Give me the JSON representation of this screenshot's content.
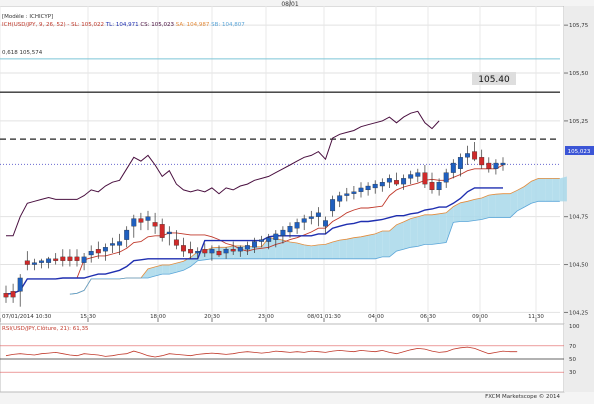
{
  "top_date_marker": "08/01",
  "main_panel": {
    "module_label": "[Modèle : ICHICYP]",
    "indicator_legend": [
      {
        "text": "ICH(USD/JPY, 9, 26, 52) -",
        "color": "#c0392b"
      },
      {
        "text": "SL: 105,022",
        "color": "#c0392b"
      },
      {
        "text": "TL: 104,971",
        "color": "#1f2fb0"
      },
      {
        "text": "CS: 105,023",
        "color": "#4a1040"
      },
      {
        "text": "SA: 104,987",
        "color": "#e38b3a"
      },
      {
        "text": "SB: 104,807",
        "color": "#5aa5d8"
      }
    ],
    "fib_label": "0,618 105,574",
    "resistance_label": "105.40",
    "current_price_label": "105,023",
    "y_ticks": [
      "105,75",
      "105,50",
      "105,25",
      "104,75",
      "104,50",
      "104,25"
    ],
    "x_ticks": [
      "07/01/2014 10:30",
      "15:30",
      "18:00",
      "20:30",
      "23:00",
      "08/01 01:30",
      "04:00",
      "06:30",
      "09:00",
      "11:30"
    ]
  },
  "chart_data": [
    {
      "type": "candlestick",
      "title": "",
      "ylim": [
        104.2,
        105.85
      ],
      "x_labels": [
        "07/01/2014 10:30",
        "15:30",
        "18:00",
        "20:30",
        "23:00",
        "08/01 01:30",
        "04:00",
        "06:30",
        "09:00",
        "11:30"
      ],
      "y_tick_values": [
        105.75,
        105.5,
        105.25,
        104.75,
        104.5,
        104.25
      ],
      "horizontal_levels": [
        {
          "label": "0,618 105,574",
          "value": 105.574,
          "style": "solid",
          "color": "#7cc5d8"
        },
        {
          "label": "105.40",
          "value": 105.4,
          "style": "solid",
          "color": "#333333"
        },
        {
          "value": 105.155,
          "style": "dashed",
          "color": "#222222"
        },
        {
          "label": "105,023",
          "value": 105.023,
          "style": "dotted",
          "color": "#6a6ad0"
        }
      ],
      "candles": [
        {
          "o": 104.35,
          "h": 104.39,
          "l": 104.3,
          "c": 104.33
        },
        {
          "o": 104.36,
          "h": 104.4,
          "l": 104.3,
          "c": 104.33
        },
        {
          "o": 104.36,
          "h": 104.45,
          "l": 104.28,
          "c": 104.43
        },
        {
          "o": 104.52,
          "h": 104.57,
          "l": 104.47,
          "c": 104.5
        },
        {
          "o": 104.5,
          "h": 104.53,
          "l": 104.47,
          "c": 104.51
        },
        {
          "o": 104.51,
          "h": 104.53,
          "l": 104.48,
          "c": 104.52
        },
        {
          "o": 104.51,
          "h": 104.54,
          "l": 104.48,
          "c": 104.53
        },
        {
          "o": 104.53,
          "h": 104.56,
          "l": 104.5,
          "c": 104.52
        },
        {
          "o": 104.54,
          "h": 104.58,
          "l": 104.49,
          "c": 104.52
        },
        {
          "o": 104.54,
          "h": 104.58,
          "l": 104.49,
          "c": 104.52
        },
        {
          "o": 104.54,
          "h": 104.58,
          "l": 104.49,
          "c": 104.52
        },
        {
          "o": 104.51,
          "h": 104.56,
          "l": 104.47,
          "c": 104.54
        },
        {
          "o": 104.55,
          "h": 104.6,
          "l": 104.51,
          "c": 104.57
        },
        {
          "o": 104.58,
          "h": 104.62,
          "l": 104.53,
          "c": 104.56
        },
        {
          "o": 104.57,
          "h": 104.61,
          "l": 104.52,
          "c": 104.59
        },
        {
          "o": 104.6,
          "h": 104.64,
          "l": 104.56,
          "c": 104.61
        },
        {
          "o": 104.6,
          "h": 104.66,
          "l": 104.55,
          "c": 104.62
        },
        {
          "o": 104.63,
          "h": 104.7,
          "l": 104.59,
          "c": 104.68
        },
        {
          "o": 104.7,
          "h": 104.76,
          "l": 104.64,
          "c": 104.74
        },
        {
          "o": 104.74,
          "h": 104.77,
          "l": 104.68,
          "c": 104.72
        },
        {
          "o": 104.73,
          "h": 104.78,
          "l": 104.68,
          "c": 104.75
        },
        {
          "o": 104.72,
          "h": 104.77,
          "l": 104.66,
          "c": 104.7
        },
        {
          "o": 104.71,
          "h": 104.74,
          "l": 104.62,
          "c": 104.64
        },
        {
          "o": 104.66,
          "h": 104.7,
          "l": 104.6,
          "c": 104.67
        },
        {
          "o": 104.63,
          "h": 104.68,
          "l": 104.58,
          "c": 104.6
        },
        {
          "o": 104.6,
          "h": 104.64,
          "l": 104.54,
          "c": 104.57
        },
        {
          "o": 104.58,
          "h": 104.62,
          "l": 104.53,
          "c": 104.56
        },
        {
          "o": 104.56,
          "h": 104.59,
          "l": 104.53,
          "c": 104.57
        },
        {
          "o": 104.58,
          "h": 104.61,
          "l": 104.54,
          "c": 104.56
        },
        {
          "o": 104.56,
          "h": 104.6,
          "l": 104.52,
          "c": 104.58
        },
        {
          "o": 104.57,
          "h": 104.6,
          "l": 104.54,
          "c": 104.55
        },
        {
          "o": 104.56,
          "h": 104.59,
          "l": 104.53,
          "c": 104.58
        },
        {
          "o": 104.58,
          "h": 104.62,
          "l": 104.55,
          "c": 104.57
        },
        {
          "o": 104.57,
          "h": 104.6,
          "l": 104.54,
          "c": 104.59
        },
        {
          "o": 104.58,
          "h": 104.62,
          "l": 104.55,
          "c": 104.6
        },
        {
          "o": 104.59,
          "h": 104.64,
          "l": 104.56,
          "c": 104.62
        },
        {
          "o": 104.62,
          "h": 104.65,
          "l": 104.59,
          "c": 104.63
        },
        {
          "o": 104.62,
          "h": 104.66,
          "l": 104.58,
          "c": 104.64
        },
        {
          "o": 104.63,
          "h": 104.68,
          "l": 104.59,
          "c": 104.66
        },
        {
          "o": 104.65,
          "h": 104.7,
          "l": 104.61,
          "c": 104.68
        },
        {
          "o": 104.67,
          "h": 104.72,
          "l": 104.64,
          "c": 104.7
        },
        {
          "o": 104.69,
          "h": 104.74,
          "l": 104.66,
          "c": 104.72
        },
        {
          "o": 104.72,
          "h": 104.76,
          "l": 104.68,
          "c": 104.74
        },
        {
          "o": 104.74,
          "h": 104.78,
          "l": 104.71,
          "c": 104.75
        },
        {
          "o": 104.75,
          "h": 104.8,
          "l": 104.7,
          "c": 104.77
        },
        {
          "o": 104.7,
          "h": 104.75,
          "l": 104.66,
          "c": 104.73
        },
        {
          "o": 104.78,
          "h": 104.86,
          "l": 104.75,
          "c": 104.84
        },
        {
          "o": 104.83,
          "h": 104.88,
          "l": 104.8,
          "c": 104.86
        },
        {
          "o": 104.86,
          "h": 104.9,
          "l": 104.83,
          "c": 104.87
        },
        {
          "o": 104.87,
          "h": 104.91,
          "l": 104.84,
          "c": 104.88
        },
        {
          "o": 104.88,
          "h": 104.93,
          "l": 104.85,
          "c": 104.9
        },
        {
          "o": 104.89,
          "h": 104.93,
          "l": 104.86,
          "c": 104.91
        },
        {
          "o": 104.9,
          "h": 104.94,
          "l": 104.87,
          "c": 104.92
        },
        {
          "o": 104.91,
          "h": 104.95,
          "l": 104.88,
          "c": 104.93
        },
        {
          "o": 104.93,
          "h": 104.97,
          "l": 104.9,
          "c": 104.95
        },
        {
          "o": 104.94,
          "h": 104.98,
          "l": 104.91,
          "c": 104.92
        },
        {
          "o": 104.92,
          "h": 104.97,
          "l": 104.89,
          "c": 104.95
        },
        {
          "o": 104.95,
          "h": 104.99,
          "l": 104.92,
          "c": 104.97
        },
        {
          "o": 104.96,
          "h": 105.0,
          "l": 104.93,
          "c": 104.98
        },
        {
          "o": 104.98,
          "h": 105.02,
          "l": 104.9,
          "c": 104.92
        },
        {
          "o": 104.93,
          "h": 104.98,
          "l": 104.87,
          "c": 104.89
        },
        {
          "o": 104.89,
          "h": 104.95,
          "l": 104.86,
          "c": 104.93
        },
        {
          "o": 104.93,
          "h": 105.0,
          "l": 104.9,
          "c": 104.98
        },
        {
          "o": 104.98,
          "h": 105.05,
          "l": 104.95,
          "c": 105.03
        },
        {
          "o": 105.0,
          "h": 105.08,
          "l": 104.96,
          "c": 105.06
        },
        {
          "o": 105.06,
          "h": 105.12,
          "l": 105.02,
          "c": 105.08
        },
        {
          "o": 105.09,
          "h": 105.14,
          "l": 105.04,
          "c": 105.05
        },
        {
          "o": 105.06,
          "h": 105.1,
          "l": 105.0,
          "c": 105.02
        },
        {
          "o": 105.03,
          "h": 105.06,
          "l": 104.98,
          "c": 105.0
        },
        {
          "o": 105.0,
          "h": 105.05,
          "l": 104.97,
          "c": 105.03
        },
        {
          "o": 105.02,
          "h": 105.06,
          "l": 104.99,
          "c": 105.03
        }
      ]
    },
    {
      "type": "line",
      "title": "RSI(USD/JPY,Clôture, 21): 61,35",
      "ylim": [
        0,
        100
      ],
      "y_ticks": [
        100,
        70,
        50,
        30
      ],
      "levels": [
        70,
        50,
        30
      ],
      "series": [
        {
          "name": "RSI",
          "values": [
            55,
            57,
            58,
            57,
            56,
            58,
            59,
            60,
            58,
            56,
            55,
            58,
            57,
            56,
            54,
            55,
            57,
            58,
            62,
            59,
            55,
            53,
            55,
            58,
            57,
            56,
            55,
            57,
            58,
            59,
            58,
            57,
            58,
            60,
            61,
            60,
            59,
            60,
            62,
            61,
            60,
            61,
            60,
            62,
            61,
            60,
            62,
            63,
            62,
            61,
            63,
            62,
            61,
            63,
            60,
            58,
            61,
            64,
            66,
            65,
            62,
            60,
            61,
            65,
            67,
            68,
            66,
            62,
            58,
            60,
            62,
            61,
            61
          ]
        }
      ]
    }
  ],
  "rsi_panel": {
    "label": "RSI(USD/JPY,Clôture, 21): 61,35",
    "y_ticks": [
      "100",
      "70",
      "50",
      "30"
    ]
  },
  "footer": {
    "credit": "FXCM Marketscope © 2014"
  },
  "colors": {
    "bull_candle": "#1f5fbf",
    "bear_candle": "#cf2a2a",
    "tenkan": "#c0392b",
    "kijun": "#1f2fb0",
    "chikou": "#4a1040",
    "kumo_bull": "#a8d8ea",
    "kumo_bear": "#e7d3b5",
    "span_a": "#e38b3a",
    "span_b": "#5aa5d8",
    "rsi_line": "#c0392b",
    "rsi_level": "#e06060",
    "rsi_mid": "#333333"
  }
}
